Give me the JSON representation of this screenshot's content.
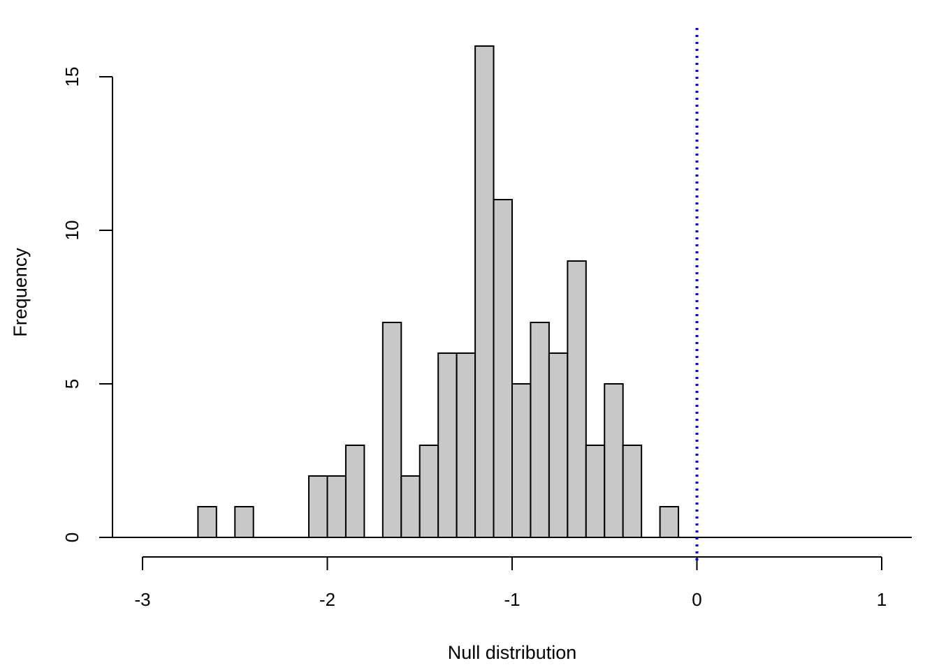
{
  "chart_data": {
    "type": "bar",
    "title": "",
    "xlabel": "Null distribution",
    "ylabel": "Frequency",
    "bin_width": 0.1,
    "bins": [
      {
        "x0": -3.0,
        "x1": -2.9,
        "count": 0
      },
      {
        "x0": -2.9,
        "x1": -2.8,
        "count": 0
      },
      {
        "x0": -2.8,
        "x1": -2.7,
        "count": 0
      },
      {
        "x0": -2.7,
        "x1": -2.6,
        "count": 1
      },
      {
        "x0": -2.6,
        "x1": -2.5,
        "count": 0
      },
      {
        "x0": -2.5,
        "x1": -2.4,
        "count": 1
      },
      {
        "x0": -2.4,
        "x1": -2.3,
        "count": 0
      },
      {
        "x0": -2.3,
        "x1": -2.2,
        "count": 0
      },
      {
        "x0": -2.2,
        "x1": -2.1,
        "count": 0
      },
      {
        "x0": -2.1,
        "x1": -2.0,
        "count": 2
      },
      {
        "x0": -2.0,
        "x1": -1.9,
        "count": 2
      },
      {
        "x0": -1.9,
        "x1": -1.8,
        "count": 3
      },
      {
        "x0": -1.8,
        "x1": -1.7,
        "count": 0
      },
      {
        "x0": -1.7,
        "x1": -1.6,
        "count": 7
      },
      {
        "x0": -1.6,
        "x1": -1.5,
        "count": 2
      },
      {
        "x0": -1.5,
        "x1": -1.4,
        "count": 3
      },
      {
        "x0": -1.4,
        "x1": -1.3,
        "count": 6
      },
      {
        "x0": -1.3,
        "x1": -1.2,
        "count": 6
      },
      {
        "x0": -1.2,
        "x1": -1.1,
        "count": 16
      },
      {
        "x0": -1.1,
        "x1": -1.0,
        "count": 11
      },
      {
        "x0": -1.0,
        "x1": -0.9,
        "count": 5
      },
      {
        "x0": -0.9,
        "x1": -0.8,
        "count": 7
      },
      {
        "x0": -0.8,
        "x1": -0.7,
        "count": 6
      },
      {
        "x0": -0.7,
        "x1": -0.6,
        "count": 9
      },
      {
        "x0": -0.6,
        "x1": -0.5,
        "count": 3
      },
      {
        "x0": -0.5,
        "x1": -0.4,
        "count": 5
      },
      {
        "x0": -0.4,
        "x1": -0.3,
        "count": 3
      },
      {
        "x0": -0.3,
        "x1": -0.2,
        "count": 0
      },
      {
        "x0": -0.2,
        "x1": -0.1,
        "count": 1
      },
      {
        "x0": -0.1,
        "x1": 0.0,
        "count": 0
      },
      {
        "x0": 0.0,
        "x1": 0.1,
        "count": 0
      },
      {
        "x0": 0.1,
        "x1": 0.2,
        "count": 0
      },
      {
        "x0": 0.2,
        "x1": 0.3,
        "count": 0
      },
      {
        "x0": 0.3,
        "x1": 0.4,
        "count": 0
      },
      {
        "x0": 0.4,
        "x1": 0.5,
        "count": 0
      },
      {
        "x0": 0.5,
        "x1": 0.6,
        "count": 0
      },
      {
        "x0": 0.6,
        "x1": 0.7,
        "count": 0
      },
      {
        "x0": 0.7,
        "x1": 0.8,
        "count": 0
      },
      {
        "x0": 0.8,
        "x1": 0.9,
        "count": 0
      },
      {
        "x0": 0.9,
        "x1": 1.0,
        "count": 0
      },
      {
        "x0": 1.0,
        "x1": 1.1,
        "count": 0
      },
      {
        "x0": 1.1,
        "x1": 1.15,
        "count": 0
      }
    ],
    "xticks": [
      -3,
      -2,
      -1,
      0,
      1
    ],
    "xtick_labels": [
      "-3",
      "-2",
      "-1",
      "0",
      "1"
    ],
    "yticks": [
      0,
      5,
      10,
      15
    ],
    "ytick_labels": [
      "0",
      "5",
      "10",
      "15"
    ],
    "xlim": [
      -3.16,
      1.16
    ],
    "ylim": [
      0,
      16.5
    ],
    "reference_line": {
      "x": 0,
      "style": "dotted"
    },
    "grid": false,
    "colors": {
      "bar_fill": "#c8c8c8",
      "bar_stroke": "#000000",
      "reference_line": "#0000ee"
    }
  }
}
